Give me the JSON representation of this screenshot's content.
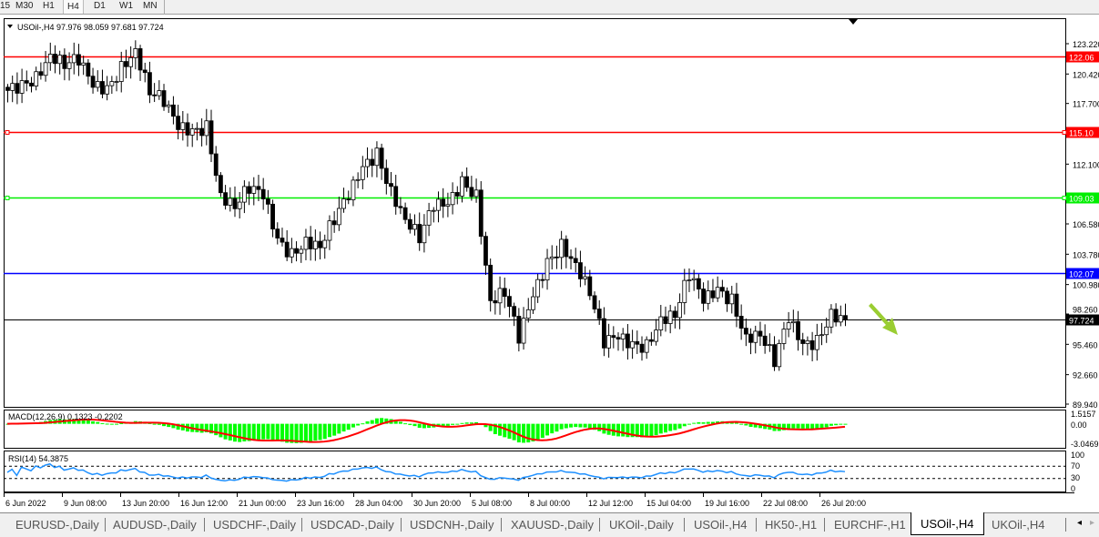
{
  "toolbar": {
    "timeframes": [
      "15",
      "M30",
      "H1",
      "H4",
      "D1",
      "W1",
      "MN"
    ],
    "active": "H4"
  },
  "chart": {
    "header": "USOil-,H4  97.976 98.059 97.681 97.724",
    "symbol": "USOil-",
    "timeframe": "H4",
    "ohlc": {
      "open": "97.976",
      "high": "98.059",
      "low": "97.681",
      "close": "97.724"
    }
  },
  "price_axis": {
    "ticks": [
      "123.220",
      "120.420",
      "117.700",
      "112.100",
      "106.580",
      "103.780",
      "100.980",
      "98.260",
      "95.460",
      "92.660",
      "89.940"
    ],
    "range": [
      89.94,
      123.22
    ]
  },
  "levels": [
    {
      "price": "122.06",
      "color": "#ff0000"
    },
    {
      "price": "115.10",
      "color": "#ff0000"
    },
    {
      "price": "109.03",
      "color": "#00ee00"
    },
    {
      "price": "102.07",
      "color": "#0000ff"
    },
    {
      "price": "97.724",
      "color": "#000000"
    }
  ],
  "macd": {
    "label": "MACD(12,26,9) 0.1323 -0.2202",
    "ticks": [
      "1.5157",
      "0.00",
      "-3.0469"
    ],
    "hist_color": "#00ff00",
    "signal_color": "#ff0000"
  },
  "rsi": {
    "label": "RSI(14) 54.3875",
    "ticks": [
      "100",
      "70",
      "30",
      "0"
    ],
    "color": "#1e90ff"
  },
  "time_axis": [
    "6 Jun 2022",
    "9 Jun 08:00",
    "13 Jun 20:00",
    "16 Jun 12:00",
    "21 Jun 00:00",
    "23 Jun 16:00",
    "28 Jun 04:00",
    "30 Jun 20:00",
    "5 Jul 08:00",
    "8 Jul 00:00",
    "12 Jul 12:00",
    "15 Jul 04:00",
    "19 Jul 16:00",
    "22 Jul 08:00",
    "26 Jul 20:00"
  ],
  "chart_data": {
    "type": "candlestick",
    "closes": [
      118.9,
      119.3,
      120.1,
      122.2,
      121.4,
      121.8,
      119.3,
      118.9,
      121,
      122.6,
      118.9,
      118,
      115.5,
      115,
      115.5,
      109.2,
      108.3,
      110,
      109.2,
      105,
      103.7,
      105,
      104.6,
      107.1,
      109.2,
      111.7,
      113,
      109.6,
      107.1,
      105.4,
      108.3,
      108.3,
      110.4,
      109.2,
      99.5,
      100.4,
      96.1,
      99.9,
      102.9,
      104.6,
      102.9,
      100.4,
      95.7,
      96.1,
      95.3,
      95.3,
      97.8,
      98.3,
      102,
      99.5,
      100.4,
      99.5,
      96.1,
      96.5,
      94,
      97.8,
      95.3,
      95.7,
      98.3,
      97.724
    ],
    "ylim": [
      89.94,
      123.22
    ],
    "arrow": "down",
    "arrow_color": "#9acd32"
  },
  "tabs": [
    "EURUSD-,Daily",
    "AUDUSD-,Daily",
    "USDCHF-,Daily",
    "USDCAD-,Daily",
    "USDCNH-,Daily",
    "XAUUSD-,Daily",
    "UKOil-,Daily",
    "USOil-,H4",
    "HK50-,H1",
    "EURCHF-,H1",
    "USOil-,H4",
    "UKOil-,H4"
  ],
  "active_tab": 10
}
